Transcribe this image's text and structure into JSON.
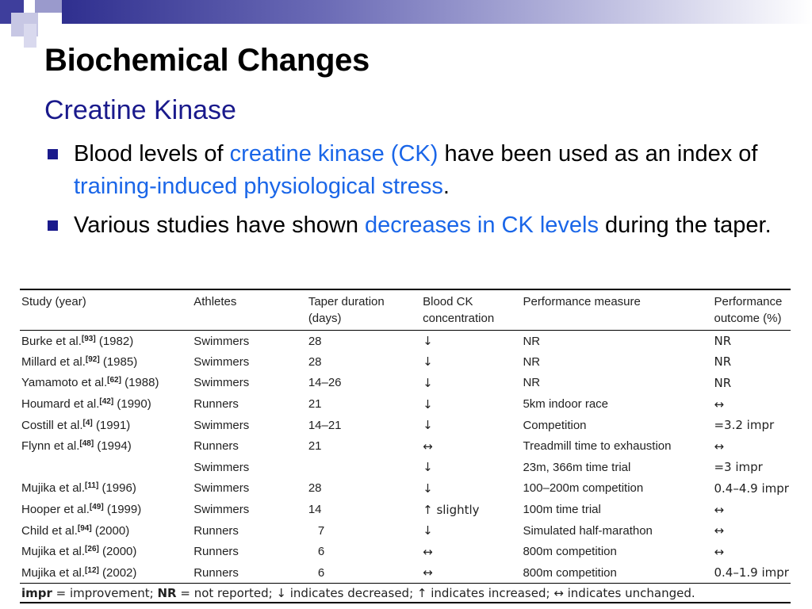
{
  "slide": {
    "title": "Biochemical Changes",
    "subtitle": "Creatine Kinase"
  },
  "bullets": [
    {
      "parts": [
        {
          "text": "Blood levels of ",
          "hl": false
        },
        {
          "text": "creatine kinase (CK)",
          "hl": true
        },
        {
          "text": " have been used as an index of ",
          "hl": false
        },
        {
          "text": "training-induced physiological stress",
          "hl": true
        },
        {
          "text": ".",
          "hl": false
        }
      ]
    },
    {
      "parts": [
        {
          "text": "Various studies have shown ",
          "hl": false
        },
        {
          "text": "decreases in CK levels",
          "hl": true
        },
        {
          "text": " during the taper.",
          "hl": false
        }
      ]
    }
  ],
  "colors": {
    "title": "#000000",
    "subtitle": "#1a1a8c",
    "highlight": "#1a66e8",
    "bullet": "#1a1a8c"
  },
  "table": {
    "headers": [
      [
        "Study (year)"
      ],
      [
        "Athletes"
      ],
      [
        "Taper duration",
        "(days)"
      ],
      [
        "Blood CK",
        "concentration"
      ],
      [
        "Performance measure"
      ],
      [
        "Performance",
        "outcome (%)"
      ]
    ],
    "rows": [
      {
        "author": "Burke et al.",
        "ref": "[93]",
        "year": "(1982)",
        "athletes": "Swimmers",
        "taper": "28",
        "ck": "↓",
        "measure": "NR",
        "outcome": "NR"
      },
      {
        "author": "Millard et al.",
        "ref": "[92]",
        "year": "(1985)",
        "athletes": "Swimmers",
        "taper": "28",
        "ck": "↓",
        "measure": "NR",
        "outcome": "NR"
      },
      {
        "author": "Yamamoto et al.",
        "ref": "[62]",
        "year": "(1988)",
        "athletes": "Swimmers",
        "taper": "14–26",
        "ck": "↓",
        "measure": "NR",
        "outcome": "NR"
      },
      {
        "author": "Houmard et al.",
        "ref": "[42]",
        "year": "(1990)",
        "athletes": "Runners",
        "taper": "21",
        "ck": "↓",
        "measure": "5km indoor race",
        "outcome": "↔"
      },
      {
        "author": "Costill et al.",
        "ref": "[4]",
        "year": "(1991)",
        "athletes": "Swimmers",
        "taper": "14–21",
        "ck": "↓",
        "measure": "Competition",
        "outcome": "=3.2 impr"
      },
      {
        "author": "Flynn et al.",
        "ref": "[48]",
        "year": "(1994)",
        "athletes": "Runners",
        "taper": "21",
        "ck": "↔",
        "measure": "Treadmill time to exhaustion",
        "outcome": "↔"
      },
      {
        "author": "",
        "ref": "",
        "year": "",
        "athletes": "Swimmers",
        "taper": "",
        "ck": "↓",
        "measure": "23m, 366m time trial",
        "outcome": "=3 impr"
      },
      {
        "author": "Mujika et al.",
        "ref": "[11]",
        "year": "(1996)",
        "athletes": "Swimmers",
        "taper": "28",
        "ck": "↓",
        "measure": "100–200m competition",
        "outcome": "0.4–4.9 impr"
      },
      {
        "author": "Hooper et al.",
        "ref": "[49]",
        "year": "(1999)",
        "athletes": "Swimmers",
        "taper": "14",
        "ck": "↑ slightly",
        "measure": "100m time trial",
        "outcome": "↔"
      },
      {
        "author": "Child et al.",
        "ref": "[94]",
        "year": "(2000)",
        "athletes": "Runners",
        "taper": "7",
        "ck": "↓",
        "measure": "Simulated half-marathon",
        "outcome": "↔"
      },
      {
        "author": "Mujika et al.",
        "ref": "[26]",
        "year": "(2000)",
        "athletes": "Runners",
        "taper": "6",
        "ck": "↔",
        "measure": "800m competition",
        "outcome": "↔"
      },
      {
        "author": "Mujika et al.",
        "ref": "[12]",
        "year": "(2002)",
        "athletes": "Runners",
        "taper": "6",
        "ck": "↔",
        "measure": "800m competition",
        "outcome": "0.4–1.9 impr"
      }
    ],
    "footnote": [
      {
        "text": "impr",
        "bold": true
      },
      {
        "text": " = improvement; ",
        "bold": false
      },
      {
        "text": "NR",
        "bold": true
      },
      {
        "text": " = not reported; ↓ indicates decreased; ↑ indicates increased; ↔ indicates unchanged.",
        "bold": false
      }
    ]
  }
}
